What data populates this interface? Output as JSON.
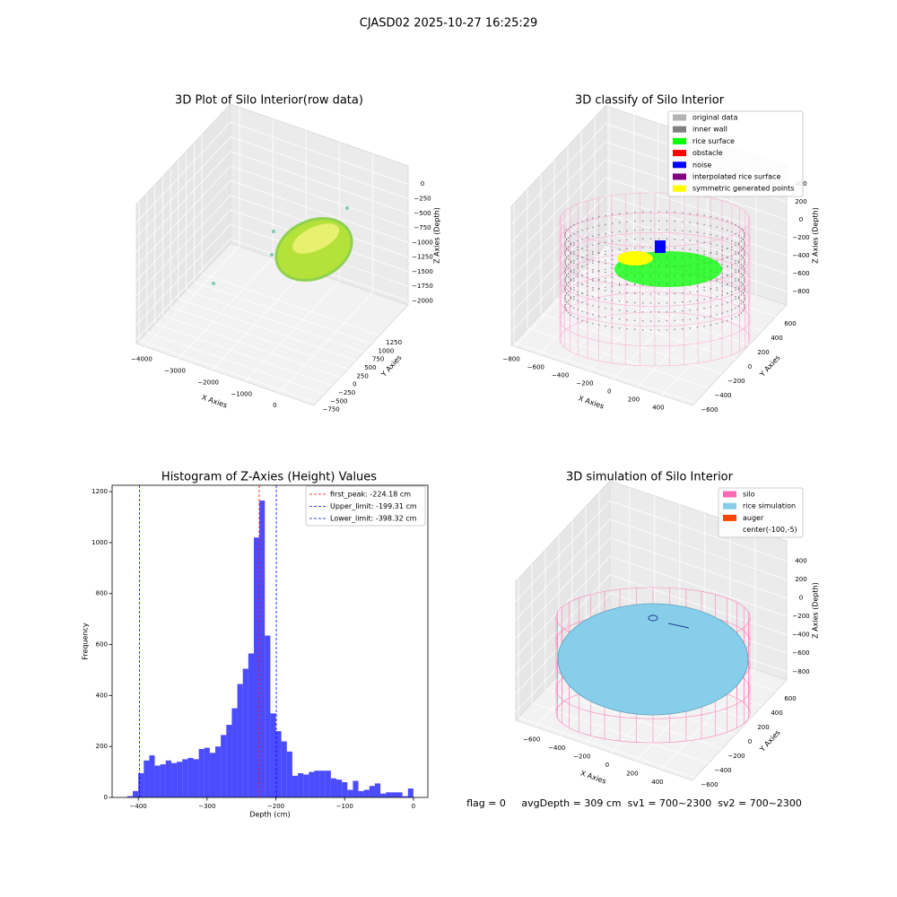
{
  "title": "CJASD02 2025-10-27 16:25:29",
  "chart_data": [
    {
      "type": "scatter3d",
      "title": "3D Plot of Silo Interior(row data)",
      "xlabel": "X Axies",
      "ylabel": "Y Axies",
      "zlabel": "Z Axies (Depth)",
      "xlim": [
        -4270,
        1070
      ],
      "xticks": [
        {
          "value": -4000,
          "label": "−4000"
        },
        {
          "value": -3000,
          "label": "−3000"
        },
        {
          "value": -2000,
          "label": "−2000"
        },
        {
          "value": -1000,
          "label": "−1000"
        },
        0
      ],
      "ylim": [
        -840,
        2160
      ],
      "yticks": [
        {
          "value": -750,
          "label": "−750"
        },
        {
          "value": -500,
          "label": "−500"
        },
        {
          "value": -250,
          "label": "−250"
        },
        0,
        250,
        500,
        750,
        1000,
        1250
      ],
      "zlim": [
        -2070,
        310
      ],
      "zticks": [
        0,
        {
          "value": -250,
          "label": "−250"
        },
        {
          "value": -500,
          "label": "−500"
        },
        {
          "value": -750,
          "label": "−750"
        },
        {
          "value": -1000,
          "label": "−1000"
        },
        {
          "value": -1250,
          "label": "−1250"
        },
        {
          "value": -1500,
          "label": "−1500"
        },
        {
          "value": -1750,
          "label": "−1750"
        },
        {
          "value": -2000,
          "label": "−2000"
        }
      ],
      "grid": true
    },
    {
      "type": "scatter3d",
      "title": "3D classify of Silo Interior",
      "xlabel": "X Axies",
      "ylabel": "Y Axies",
      "zlabel": "Z Axies (Depth)",
      "xlim": [
        -830,
        650
      ],
      "xticks": [
        {
          "value": -800,
          "label": "−800"
        },
        {
          "value": -600,
          "label": "−600"
        },
        {
          "value": -400,
          "label": "−400"
        },
        {
          "value": -200,
          "label": "−200"
        },
        0,
        200,
        400
      ],
      "ylim": [
        -640,
        760
      ],
      "yticks": [
        {
          "value": -600,
          "label": "−600"
        },
        {
          "value": -400,
          "label": "−400"
        },
        {
          "value": -200,
          "label": "−200"
        },
        0,
        200,
        400,
        600
      ],
      "zlim": [
        -950,
        600
      ],
      "zticks": [
        400,
        200,
        0,
        {
          "value": -200,
          "label": "−200"
        },
        {
          "value": -400,
          "label": "−400"
        },
        {
          "value": -600,
          "label": "−600"
        },
        {
          "value": -800,
          "label": "−800"
        }
      ],
      "grid": true,
      "legend": "upper right",
      "series": [
        {
          "name": "original data",
          "color": "#b3b3b3"
        },
        {
          "name": "inner wall",
          "color": "#808080"
        },
        {
          "name": "rice surface",
          "color": "#00ff00"
        },
        {
          "name": "obstacle",
          "color": "#ff0000"
        },
        {
          "name": "noise",
          "color": "#0000ff"
        },
        {
          "name": "interpolated rice surface",
          "color": "#800080"
        },
        {
          "name": "symmetric generated points",
          "color": "#ffff00"
        }
      ]
    },
    {
      "type": "histogram",
      "title": "Histogram of Z-Axies (Height) Values",
      "xlabel": "Depth (cm)",
      "ylabel": "Frequency",
      "color": "#0000ff",
      "alpha": 0.7,
      "bins": [
        -416,
        -408,
        -400,
        -392,
        -384,
        -376,
        -368,
        -360,
        -352,
        -344,
        -336,
        -328,
        -320,
        -312,
        -304,
        -296,
        -288,
        -280,
        -272,
        -264,
        -256,
        -248,
        -240,
        -232,
        -224,
        -216,
        -208,
        -200,
        -192,
        -184,
        -176,
        -168,
        -160,
        -152,
        -144,
        -136,
        -128,
        -120,
        -112,
        -104,
        -96,
        -88,
        -80,
        -72,
        -64,
        -56,
        -48,
        -40,
        -32,
        -24,
        -16,
        -8,
        0
      ],
      "counts": [
        5,
        25,
        95,
        145,
        165,
        125,
        130,
        145,
        135,
        140,
        150,
        155,
        150,
        190,
        195,
        175,
        200,
        245,
        285,
        350,
        445,
        505,
        565,
        1020,
        1165,
        635,
        330,
        260,
        220,
        180,
        85,
        95,
        90,
        100,
        105,
        105,
        105,
        75,
        70,
        60,
        30,
        65,
        25,
        30,
        45,
        55,
        15,
        20,
        20,
        20,
        5,
        35
      ],
      "xlim": [
        -438,
        21
      ],
      "xticks": [
        {
          "value": -400,
          "label": "−400"
        },
        {
          "value": -300,
          "label": "−300"
        },
        {
          "value": -200,
          "label": "−200"
        },
        {
          "value": -100,
          "label": "−100"
        },
        0
      ],
      "ylim": [
        0,
        1225
      ],
      "yticks": [
        0,
        200,
        400,
        600,
        800,
        1000,
        1200
      ],
      "legend": "upper right",
      "vlines": [
        {
          "name": "first_peak: -224.18 cm",
          "value": -224.18,
          "color": "#ff0000"
        },
        {
          "name": "Upper_limit: -199.31 cm",
          "value": -199.31,
          "color": "#0000ff"
        },
        {
          "name": "Lower_limit: -398.32 cm",
          "value": -398.32,
          "color": "#0000ff"
        }
      ]
    },
    {
      "type": "surface3d",
      "title": "3D simulation of Silo Interior",
      "xlabel": "X Axies",
      "ylabel": "Y Axies",
      "zlabel": "Z Axies (Depth)",
      "xlim": [
        -755,
        650
      ],
      "xticks": [
        {
          "value": -600,
          "label": "−600"
        },
        {
          "value": -400,
          "label": "−400"
        },
        {
          "value": -200,
          "label": "−200"
        },
        0,
        200,
        400
      ],
      "ylim": [
        -640,
        760
      ],
      "yticks": [
        {
          "value": -600,
          "label": "−600"
        },
        {
          "value": -400,
          "label": "−400"
        },
        {
          "value": -200,
          "label": "−200"
        },
        0,
        200,
        400,
        600
      ],
      "zlim": [
        -890,
        620
      ],
      "zticks": [
        400,
        200,
        0,
        {
          "value": -200,
          "label": "−200"
        },
        {
          "value": -400,
          "label": "−400"
        },
        {
          "value": -600,
          "label": "−600"
        },
        {
          "value": -800,
          "label": "−800"
        }
      ],
      "grid": true,
      "legend": "upper right",
      "series": [
        {
          "name": "silo",
          "color": "#ff69b4"
        },
        {
          "name": "rice simulation",
          "color": "#87ceeb"
        },
        {
          "name": "auger",
          "color": "#ff4500"
        },
        {
          "name": "center(-100,-5)"
        }
      ],
      "annotation": "flag = 0     avgDepth = 309 cm  sv1 = 700~2300  sv2 = 700~2300"
    }
  ]
}
